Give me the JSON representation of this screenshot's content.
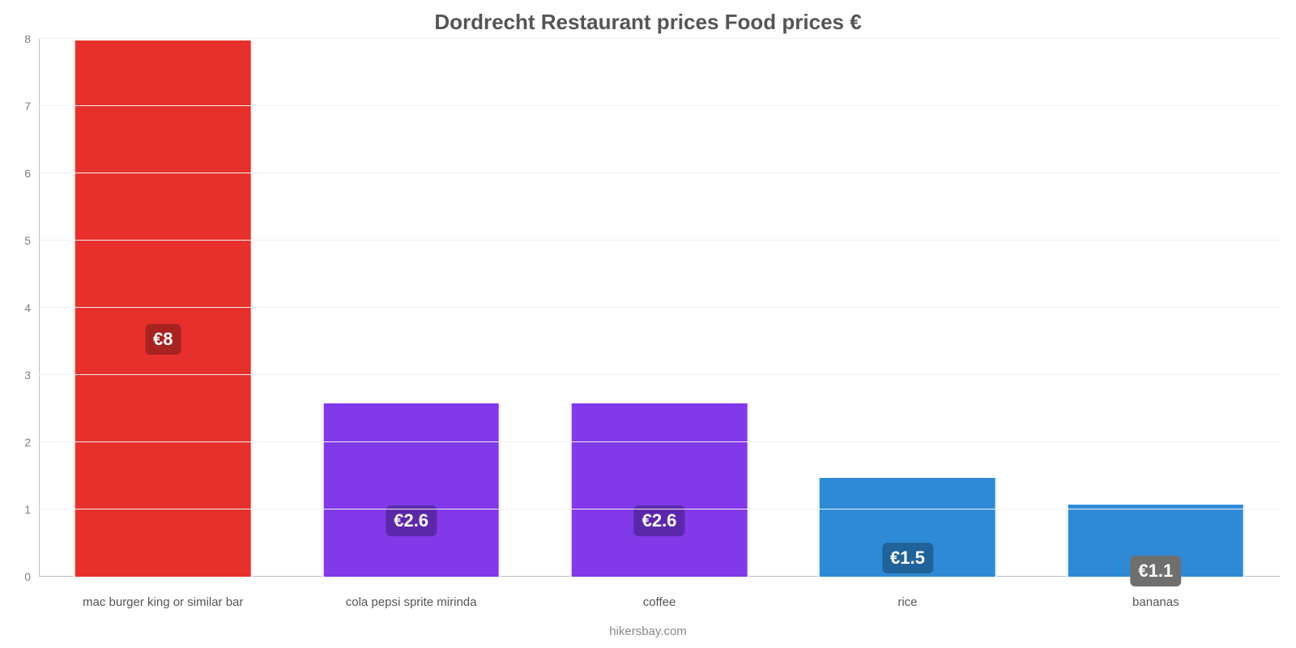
{
  "chart": {
    "type": "bar",
    "title": "Dordrecht Restaurant prices Food prices €",
    "title_fontsize": 26,
    "title_color": "#555555",
    "credit": "hikersbay.com",
    "credit_color": "#888888",
    "background_color": "#ffffff",
    "grid_color": "#f0f0f0",
    "axis_color": "#bfbfbf",
    "tick_color": "#7f7f7f",
    "xlabel_color": "#555555",
    "ylim": [
      0,
      8
    ],
    "ytick_step": 1,
    "bar_width_pct": 72,
    "value_label_fontsize": 22,
    "categories": [
      {
        "label": "mac burger king or similar bar",
        "value": 8.0,
        "display": "€8",
        "bar_color": "#e7302c",
        "badge_color": "#a82220"
      },
      {
        "label": "cola pepsi sprite mirinda",
        "value": 2.6,
        "display": "€2.6",
        "bar_color": "#8139e9",
        "badge_color": "#5c28ab"
      },
      {
        "label": "coffee",
        "value": 2.6,
        "display": "€2.6",
        "bar_color": "#8139e9",
        "badge_color": "#5c28ab"
      },
      {
        "label": "rice",
        "value": 1.5,
        "display": "€1.5",
        "bar_color": "#2e8ad6",
        "badge_color": "#20639b"
      },
      {
        "label": "bananas",
        "value": 1.1,
        "display": "€1.1",
        "bar_color": "#2e8ad6",
        "badge_color": "#6f6f6f"
      }
    ]
  }
}
